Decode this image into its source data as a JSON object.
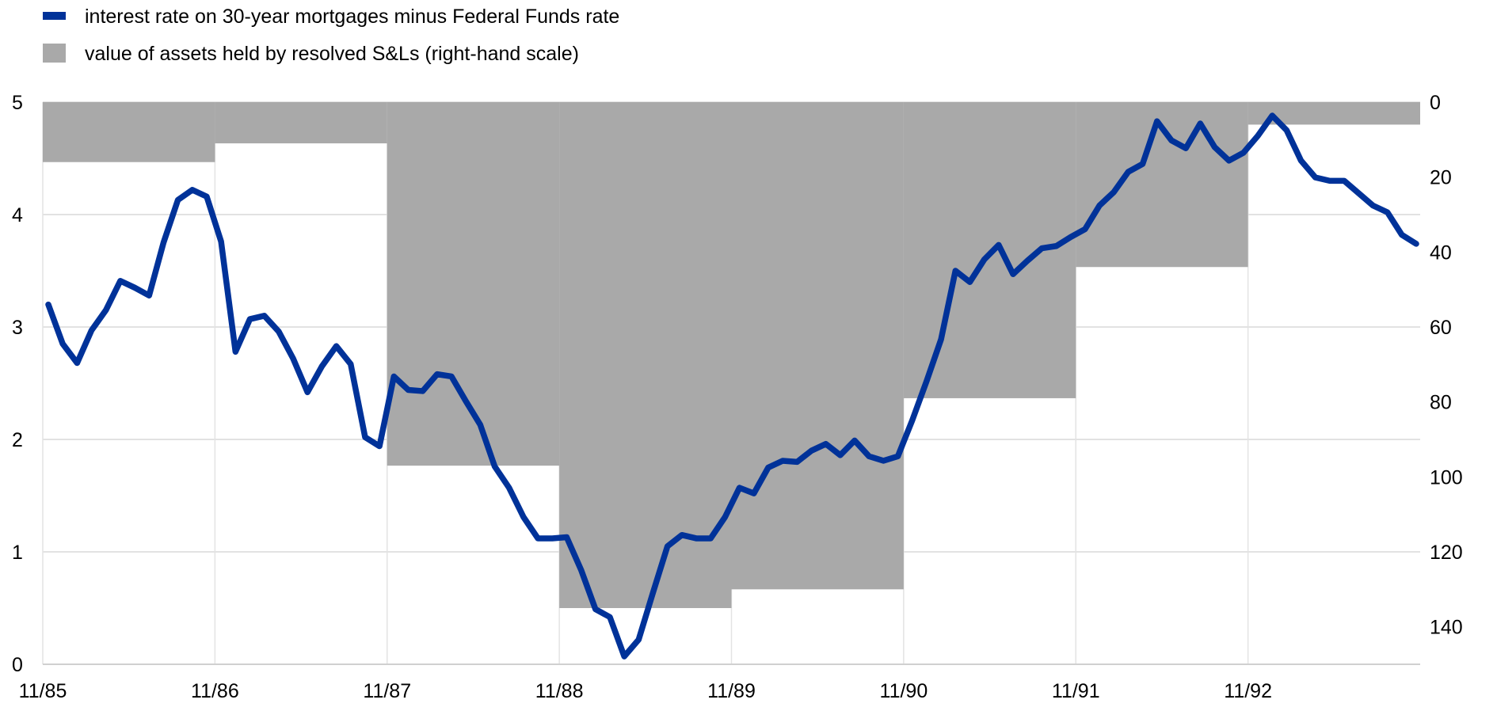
{
  "chart_data": [
    {
      "type": "line",
      "axis": "left",
      "legend": "interest rate on 30-year mortgages minus Federal Funds rate",
      "color": "#003299",
      "ylim": [
        0,
        5
      ],
      "yticks": [
        "0",
        "1",
        "2",
        "3",
        "4",
        "5"
      ],
      "x": [
        "1985-11",
        "1985-12",
        "1986-01",
        "1986-02",
        "1986-03",
        "1986-04",
        "1986-05",
        "1986-06",
        "1986-07",
        "1986-08",
        "1986-09",
        "1986-10",
        "1986-11",
        "1986-12",
        "1987-01",
        "1987-02",
        "1987-03",
        "1987-04",
        "1987-05",
        "1987-06",
        "1987-07",
        "1987-08",
        "1987-09",
        "1987-10",
        "1987-11",
        "1987-12",
        "1988-01",
        "1988-02",
        "1988-03",
        "1988-04",
        "1988-05",
        "1988-06",
        "1988-07",
        "1988-08",
        "1988-09",
        "1988-10",
        "1988-11",
        "1988-12",
        "1989-01",
        "1989-02",
        "1989-03",
        "1989-04",
        "1989-05",
        "1989-06",
        "1989-07",
        "1989-08",
        "1989-09",
        "1989-10",
        "1989-11",
        "1989-12",
        "1990-01",
        "1990-02",
        "1990-03",
        "1990-04",
        "1990-05",
        "1990-06",
        "1990-07",
        "1990-08",
        "1990-09",
        "1990-10",
        "1990-11",
        "1990-12",
        "1991-01",
        "1991-02",
        "1991-03",
        "1991-04",
        "1991-05",
        "1991-06",
        "1991-07",
        "1991-08",
        "1991-09",
        "1991-10",
        "1991-11",
        "1991-12",
        "1992-01",
        "1992-02",
        "1992-03",
        "1992-04",
        "1992-05",
        "1992-06",
        "1992-07",
        "1992-08",
        "1992-09",
        "1992-10",
        "1992-11",
        "1992-12",
        "1993-01",
        "1993-02",
        "1993-03",
        "1993-04",
        "1993-05",
        "1993-06",
        "1993-07",
        "1993-08",
        "1993-09",
        "1993-10"
      ],
      "values": [
        3.2,
        2.85,
        2.68,
        2.97,
        3.15,
        3.41,
        3.35,
        3.28,
        3.75,
        4.13,
        4.22,
        4.16,
        3.76,
        2.78,
        3.07,
        3.1,
        2.96,
        2.72,
        2.42,
        2.65,
        2.83,
        2.67,
        2.02,
        1.94,
        2.56,
        2.44,
        2.43,
        2.58,
        2.56,
        2.34,
        2.13,
        1.76,
        1.57,
        1.31,
        1.12,
        1.12,
        1.13,
        0.84,
        0.49,
        0.42,
        0.07,
        0.22,
        0.64,
        1.05,
        1.15,
        1.12,
        1.12,
        1.31,
        1.57,
        1.52,
        1.75,
        1.81,
        1.8,
        1.9,
        1.96,
        1.86,
        1.99,
        1.85,
        1.81,
        1.85,
        2.17,
        2.52,
        2.89,
        3.5,
        3.4,
        3.6,
        3.73,
        3.47,
        3.59,
        3.7,
        3.72,
        3.8,
        3.87,
        4.08,
        4.2,
        4.38,
        4.45,
        4.83,
        4.66,
        4.59,
        4.81,
        4.6,
        4.48,
        4.55,
        4.7,
        4.88,
        4.75,
        4.48,
        4.33,
        4.3,
        4.3,
        4.19,
        4.08,
        4.02,
        3.82,
        3.74
      ]
    },
    {
      "type": "bar",
      "axis": "right",
      "legend": "value of assets held by resolved S&Ls (right-hand scale)",
      "color": "#a9a9a9",
      "ylim": [
        150,
        0
      ],
      "inverted": true,
      "yticks": [
        "0",
        "20",
        "40",
        "60",
        "80",
        "100",
        "120",
        "140"
      ],
      "categories": [
        "11/85-10/86",
        "11/86-10/87",
        "11/87-10/88",
        "11/88-10/89",
        "11/89-10/90",
        "11/90-10/91",
        "11/91-10/92",
        "11/92-10/93"
      ],
      "values": [
        16,
        11,
        97,
        135,
        130,
        79,
        44,
        6
      ]
    }
  ],
  "xticks": [
    "11/85",
    "11/86",
    "11/87",
    "11/88",
    "11/89",
    "11/90",
    "11/91",
    "11/92"
  ],
  "grid": true,
  "legend_position": "top-left"
}
